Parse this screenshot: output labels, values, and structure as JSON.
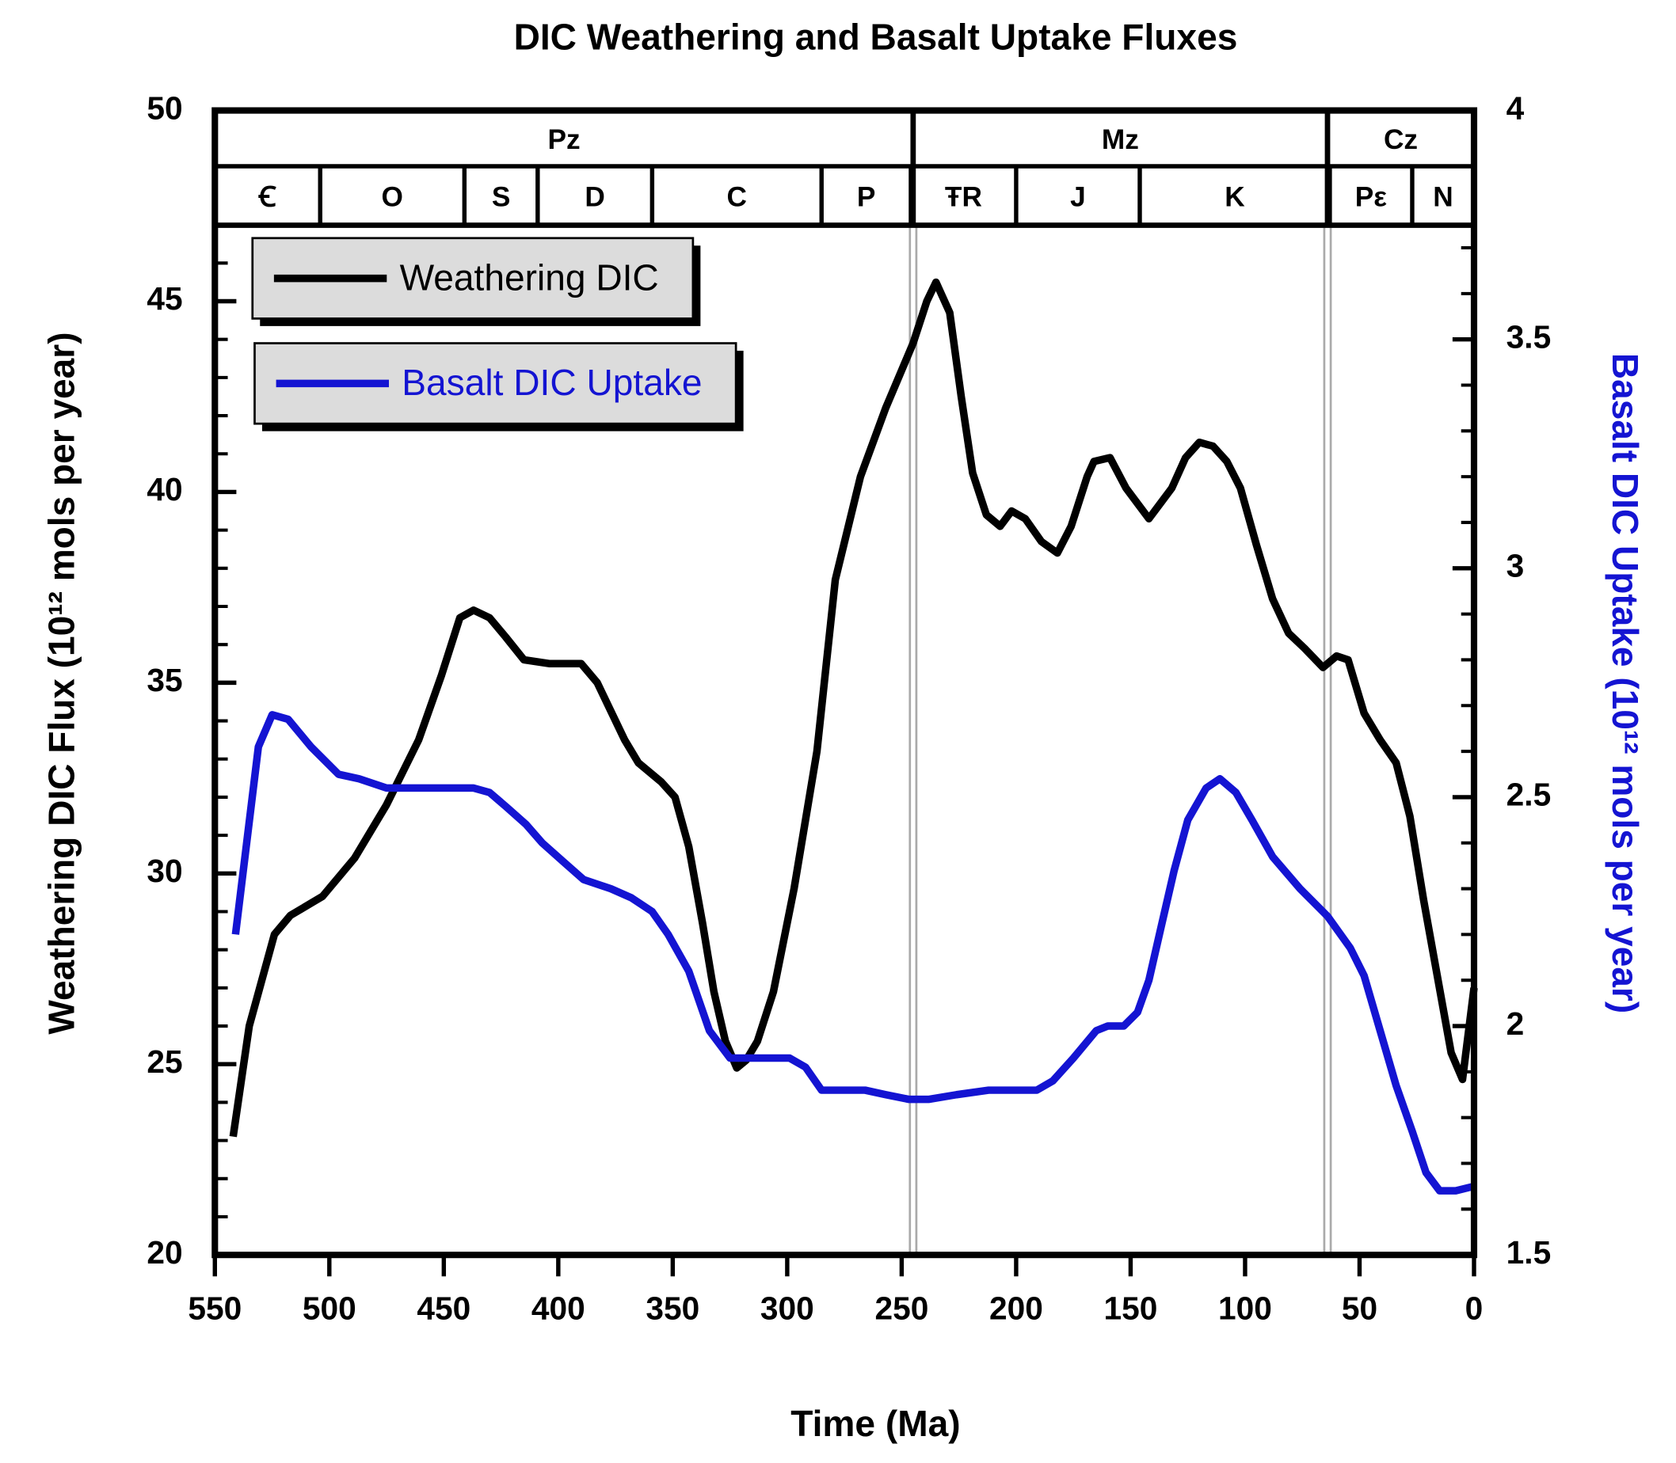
{
  "chart_data": {
    "type": "line",
    "title": "DIC Weathering and Basalt Uptake Fluxes",
    "x_label": "Time (Ma)",
    "y_label": "Weathering DIC Flux (10¹² mols per year)",
    "y2_label": "Basalt DIC Uptake (10¹² mols per year)",
    "xlim": [
      550,
      0
    ],
    "xticks": [
      550,
      500,
      450,
      400,
      350,
      300,
      250,
      200,
      150,
      100,
      50,
      0
    ],
    "ylim": [
      20,
      50
    ],
    "yticks": [
      20,
      25,
      30,
      35,
      40,
      45,
      50
    ],
    "y2lim": [
      1.5,
      4
    ],
    "y2ticks": [
      1.5,
      2,
      2.5,
      3,
      3.5,
      4
    ],
    "legend": "upper left",
    "eras": [
      {
        "label": "Pz",
        "start": 550,
        "end": 245
      },
      {
        "label": "Mz",
        "start": 245,
        "end": 64
      },
      {
        "label": "Cz",
        "start": 64,
        "end": 0
      }
    ],
    "periods": [
      {
        "label": "Ꞓ",
        "start": 550,
        "end": 504
      },
      {
        "label": "O",
        "start": 504,
        "end": 441
      },
      {
        "label": "S",
        "start": 441,
        "end": 409
      },
      {
        "label": "D",
        "start": 409,
        "end": 359
      },
      {
        "label": "C",
        "start": 359,
        "end": 285
      },
      {
        "label": "P",
        "start": 285,
        "end": 246
      },
      {
        "label": "ŦR",
        "start": 246,
        "end": 200
      },
      {
        "label": "J",
        "start": 200,
        "end": 146
      },
      {
        "label": "K",
        "start": 146,
        "end": 63
      },
      {
        "label": "Pε",
        "start": 63,
        "end": 27
      },
      {
        "label": "N",
        "start": 27,
        "end": 0
      }
    ],
    "series": [
      {
        "name": "Weathering DIC",
        "color": "#000000",
        "axis": "y",
        "x": [
          542,
          535,
          524,
          517,
          503,
          489,
          475,
          461,
          451,
          443,
          437,
          430,
          423,
          415,
          404,
          390,
          383,
          371,
          365,
          355,
          349,
          343,
          337,
          332,
          327,
          322,
          318,
          313,
          306,
          297,
          287,
          279,
          268,
          257,
          245,
          239,
          235,
          229,
          224,
          219,
          213,
          207,
          202,
          196,
          189,
          182,
          176,
          169,
          166,
          159,
          152,
          142,
          132,
          126,
          120,
          114,
          108,
          102,
          95,
          88,
          81,
          74,
          66,
          60,
          55,
          48,
          41,
          34,
          28,
          22,
          16,
          10,
          5,
          0
        ],
        "values": [
          23.1,
          26.0,
          28.4,
          28.9,
          29.4,
          30.4,
          31.8,
          33.5,
          35.2,
          36.7,
          36.9,
          36.7,
          36.2,
          35.6,
          35.5,
          35.5,
          35.0,
          33.5,
          32.9,
          32.4,
          32.0,
          30.7,
          28.7,
          26.9,
          25.6,
          24.9,
          25.1,
          25.6,
          26.9,
          29.6,
          33.2,
          37.7,
          40.4,
          42.2,
          43.9,
          45.0,
          45.5,
          44.7,
          42.5,
          40.5,
          39.4,
          39.1,
          39.5,
          39.3,
          38.7,
          38.4,
          39.1,
          40.4,
          40.8,
          40.9,
          40.1,
          39.3,
          40.1,
          40.9,
          41.3,
          41.2,
          40.8,
          40.1,
          38.6,
          37.2,
          36.3,
          35.9,
          35.4,
          35.7,
          35.6,
          34.2,
          33.5,
          32.9,
          31.5,
          29.3,
          27.3,
          25.3,
          24.6,
          27.0
        ]
      },
      {
        "name": "Basalt DIC Uptake",
        "color": "#1414d2",
        "axis": "y2",
        "x": [
          541,
          531,
          525,
          518,
          508,
          496,
          487,
          475,
          456,
          437,
          430,
          423,
          414,
          407,
          398,
          389,
          377,
          368,
          359,
          352,
          343,
          334,
          325,
          315,
          306,
          299,
          292,
          285,
          275,
          266,
          257,
          247,
          238,
          226,
          212,
          203,
          191,
          184,
          175,
          165,
          160,
          153,
          147,
          142,
          137,
          131,
          125,
          117,
          111,
          104,
          97,
          88,
          76,
          64,
          54,
          48,
          41,
          34,
          27,
          21,
          15,
          8,
          0
        ],
        "values": [
          2.2,
          2.61,
          2.68,
          2.67,
          2.61,
          2.55,
          2.54,
          2.52,
          2.52,
          2.52,
          2.51,
          2.48,
          2.44,
          2.4,
          2.36,
          2.32,
          2.3,
          2.28,
          2.25,
          2.2,
          2.12,
          1.99,
          1.93,
          1.93,
          1.93,
          1.93,
          1.91,
          1.86,
          1.86,
          1.86,
          1.85,
          1.84,
          1.84,
          1.85,
          1.86,
          1.86,
          1.86,
          1.88,
          1.93,
          1.99,
          2.0,
          2.0,
          2.03,
          2.1,
          2.21,
          2.34,
          2.45,
          2.52,
          2.54,
          2.51,
          2.45,
          2.37,
          2.3,
          2.24,
          2.17,
          2.11,
          1.99,
          1.87,
          1.77,
          1.68,
          1.64,
          1.64,
          1.65
        ]
      }
    ]
  }
}
